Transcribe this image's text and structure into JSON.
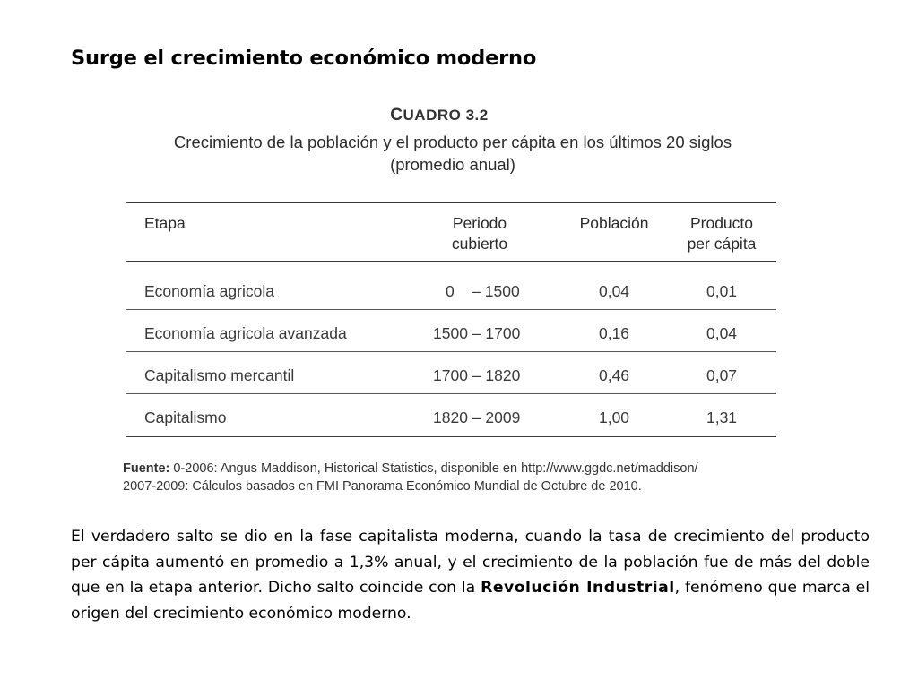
{
  "slide": {
    "title": "Surge el crecimiento económico moderno"
  },
  "table": {
    "label_prefix": "C",
    "label_rest": "UADRO 3.2",
    "caption_line1": "Crecimiento de la población y el producto per cápita en los últimos 20 siglos",
    "caption_line2": "(promedio anual)",
    "headers": {
      "etapa": "Etapa",
      "periodo_line1": "Periodo",
      "periodo_line2": "cubierto",
      "poblacion": "Población",
      "producto_line1": "Producto",
      "producto_line2": "per cápita"
    },
    "rows": [
      {
        "etapa": "Economía agricola",
        "periodo": "0    – 1500",
        "poblacion": "0,04",
        "producto": "0,01"
      },
      {
        "etapa": "Economía agricola avanzada",
        "periodo": "1500 – 1700",
        "poblacion": "0,16",
        "producto": "0,04"
      },
      {
        "etapa": "Capitalismo mercantil",
        "periodo": "1700 – 1820",
        "poblacion": "0,46",
        "producto": "0,07"
      },
      {
        "etapa": "Capitalismo",
        "periodo": "1820 – 2009",
        "poblacion": "1,00",
        "producto": "1,31"
      }
    ],
    "source_label": "Fuente:",
    "source_line1": "0-2006: Angus Maddison, Historical Statistics, disponible en http://www.ggdc.net/maddison/",
    "source_line2": "2007-2009: Cálculos basados en FMI Panorama Económico Mundial de Octubre de 2010."
  },
  "body": {
    "part1": "El verdadero salto se dio en la fase capitalista moderna, cuando la tasa de crecimiento del producto per cápita aumentó en promedio a 1,3% anual, y el crecimiento de la población fue de más del doble que en la etapa anterior. Dicho salto coincide con la ",
    "bold": "Revolución Industrial",
    "part2": ", fenómeno que marca el origen del crecimiento económico moderno."
  }
}
